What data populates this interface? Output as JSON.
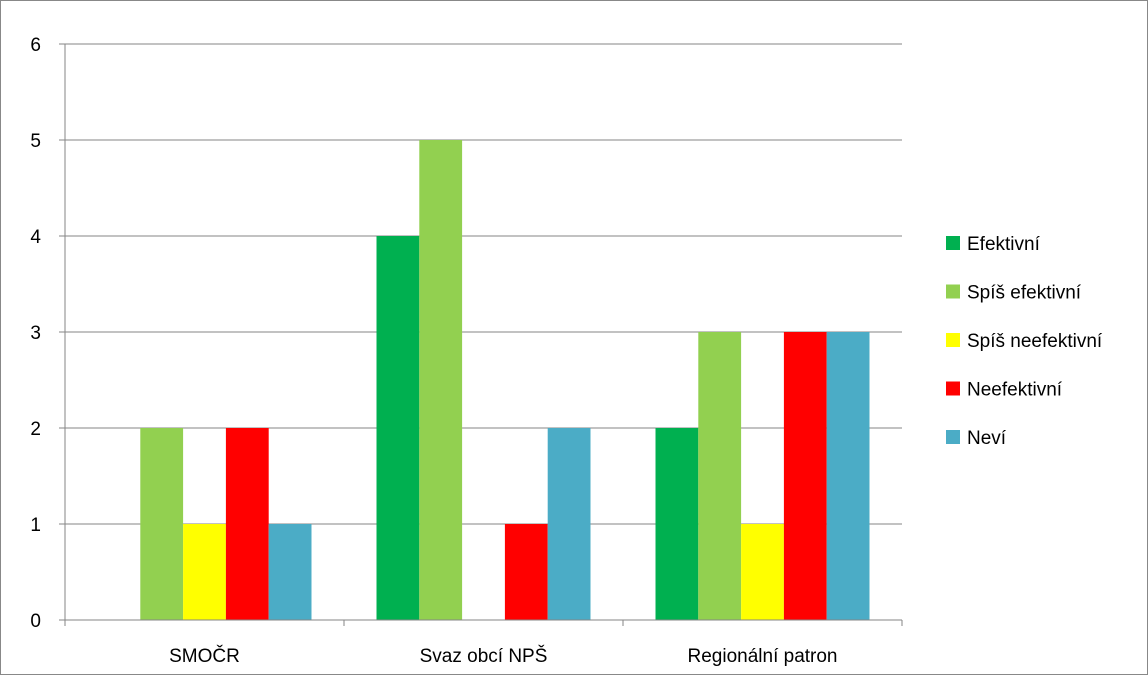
{
  "chart_data": {
    "type": "bar",
    "title": "",
    "xlabel": "",
    "ylabel": "",
    "categories": [
      "SMOČR",
      "Svaz obcí NPŠ",
      "Regionální patron"
    ],
    "ylim": [
      0,
      6
    ],
    "yticks": [
      "0",
      "1",
      "2",
      "3",
      "4",
      "5",
      "6"
    ],
    "grid": true,
    "legend_position": "right",
    "series": [
      {
        "name": "Efektivní",
        "color": "#00b050",
        "values": [
          0,
          4,
          2
        ]
      },
      {
        "name": "Spíš efektivní",
        "color": "#92d050",
        "values": [
          2,
          5,
          3
        ]
      },
      {
        "name": "Spíš neefektivní",
        "color": "#ffff00",
        "values": [
          1,
          0,
          1
        ]
      },
      {
        "name": "Neefektivní",
        "color": "#ff0000",
        "values": [
          2,
          1,
          3
        ]
      },
      {
        "name": "Neví",
        "color": "#4bacc6",
        "values": [
          1,
          2,
          3
        ]
      }
    ]
  }
}
